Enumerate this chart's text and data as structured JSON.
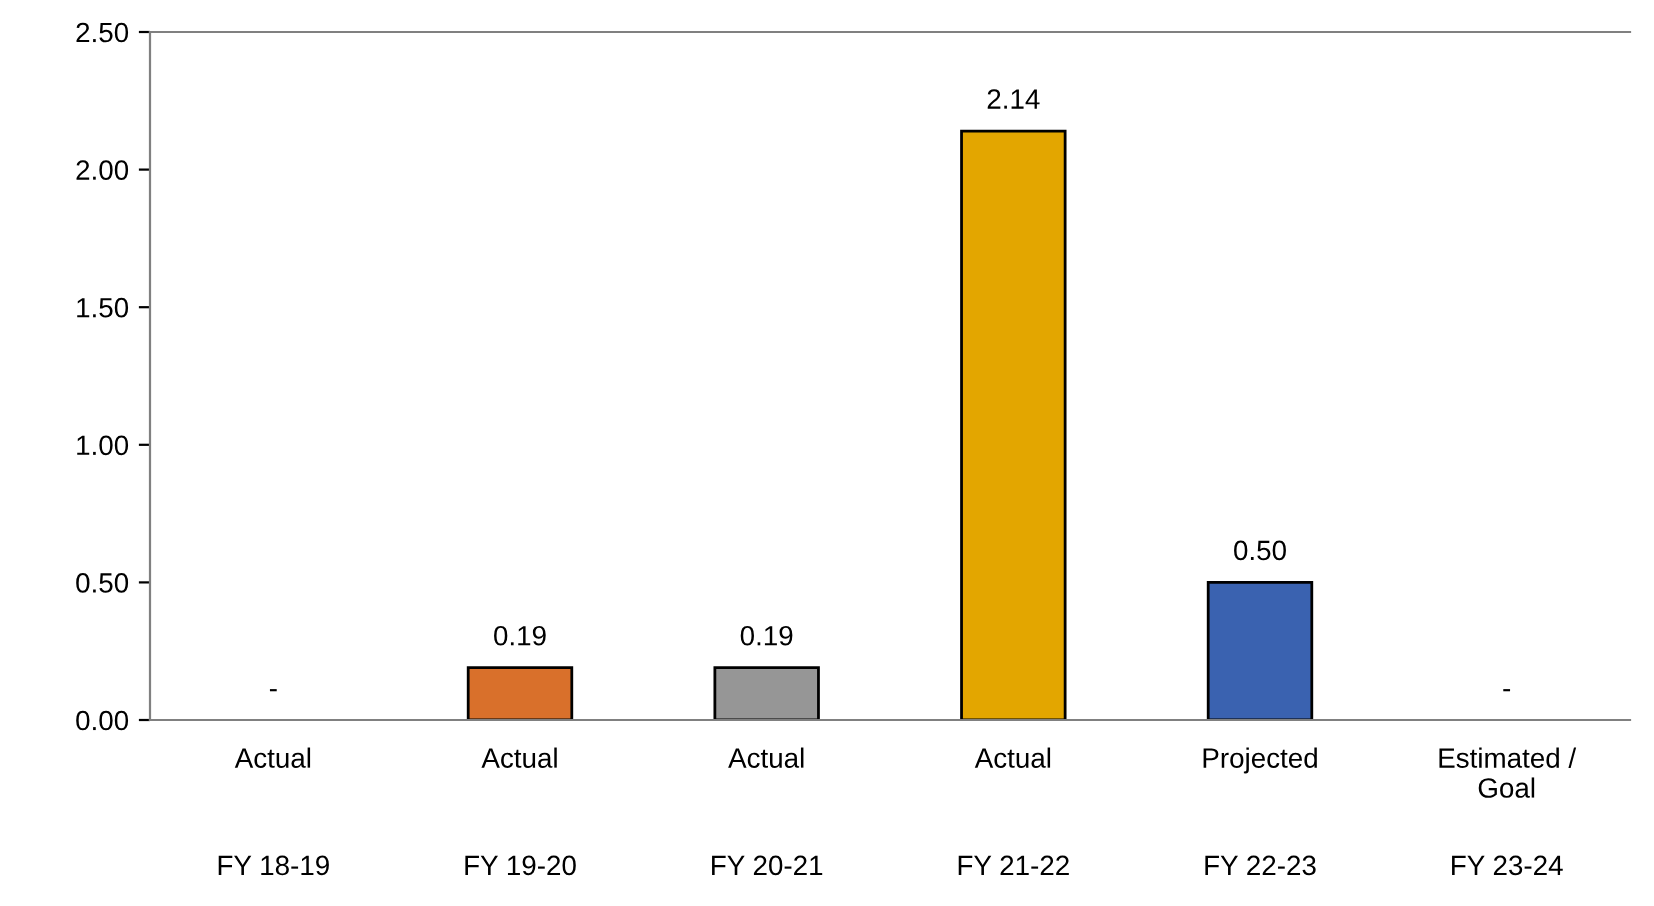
{
  "chart_data": {
    "type": "bar",
    "categories": [
      "Actual\nFY 18-19",
      "Actual\nFY 19-20",
      "Actual\nFY 20-21",
      "Actual\nFY 21-22",
      "Projected\nFY 22-23",
      "Estimated /\nGoal\nFY 23-24"
    ],
    "values": [
      0,
      0.19,
      0.19,
      2.14,
      0.5,
      0
    ],
    "colors": [
      null,
      "#d9702b",
      "#969696",
      "#e3a600",
      "#3a62b0",
      null
    ],
    "value_labels": [
      "-",
      "0.19",
      "0.19",
      "2.14",
      "0.50",
      "-"
    ],
    "ylim": [
      0,
      2.5
    ],
    "yticks": [
      {
        "value": 0,
        "label": "0.00"
      },
      {
        "value": 0.5,
        "label": "0.50"
      },
      {
        "value": 1,
        "label": "1.00"
      },
      {
        "value": 1.5,
        "label": "1.50"
      },
      {
        "value": 2,
        "label": "2.00"
      },
      {
        "value": 2.5,
        "label": "2.50"
      }
    ],
    "grid": false
  }
}
